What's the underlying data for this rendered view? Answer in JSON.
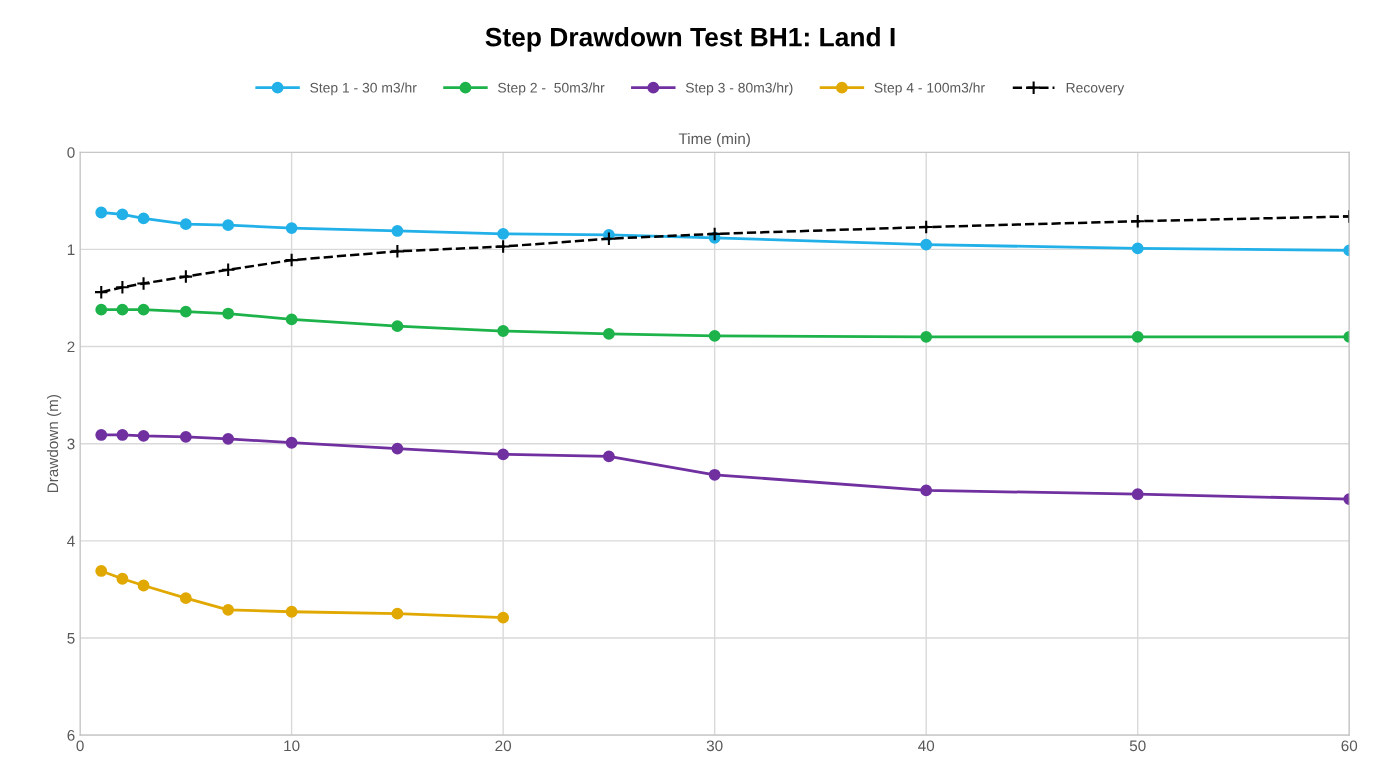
{
  "chart_data": {
    "type": "line",
    "title": "Step Drawdown Test BH1: Land I",
    "xlabel": "Time (min)",
    "ylabel": "Drawdown (m)",
    "x": [
      1,
      2,
      3,
      5,
      7,
      10,
      15,
      20,
      25,
      30,
      40,
      50,
      60
    ],
    "series": [
      {
        "name": "Step 1 - 30 m3/hr",
        "color": "#22b0e8",
        "marker": "circle",
        "line_style": "solid",
        "values": [
          0.62,
          0.64,
          0.68,
          0.74,
          0.75,
          0.78,
          0.81,
          0.84,
          0.85,
          0.88,
          0.95,
          0.99,
          1.01
        ]
      },
      {
        "name": "Step 2 -  50m3/hr",
        "color": "#1db34a",
        "marker": "circle",
        "line_style": "solid",
        "values": [
          1.62,
          1.62,
          1.62,
          1.64,
          1.66,
          1.72,
          1.79,
          1.84,
          1.87,
          1.89,
          1.9,
          1.9,
          1.9
        ]
      },
      {
        "name": "Step 3 - 80m3/hr)",
        "color": "#7030a0",
        "marker": "circle",
        "line_style": "solid",
        "values": [
          2.91,
          2.91,
          2.92,
          2.93,
          2.95,
          2.99,
          3.05,
          3.11,
          3.13,
          3.32,
          3.48,
          3.52,
          3.57
        ]
      },
      {
        "name": "Step 4 - 100m3/hr",
        "color": "#e0a800",
        "marker": "circle",
        "line_style": "solid",
        "x": [
          1,
          2,
          3,
          5,
          7,
          10,
          15,
          20
        ],
        "values": [
          4.31,
          4.39,
          4.46,
          4.59,
          4.71,
          4.73,
          4.75,
          4.79
        ]
      },
      {
        "name": "Recovery",
        "color": "#000000",
        "marker": "cross",
        "line_style": "dashed",
        "values": [
          1.44,
          1.39,
          1.35,
          1.28,
          1.21,
          1.11,
          1.02,
          0.97,
          0.89,
          0.84,
          0.77,
          0.71,
          0.66
        ]
      }
    ],
    "xlim": [
      0,
      60
    ],
    "xticks": [
      0,
      10,
      20,
      30,
      40,
      50,
      60
    ],
    "ylim": [
      6,
      0
    ],
    "yticks": [
      0,
      1,
      2,
      3,
      4,
      5,
      6
    ],
    "grid": true,
    "legend": "top"
  }
}
